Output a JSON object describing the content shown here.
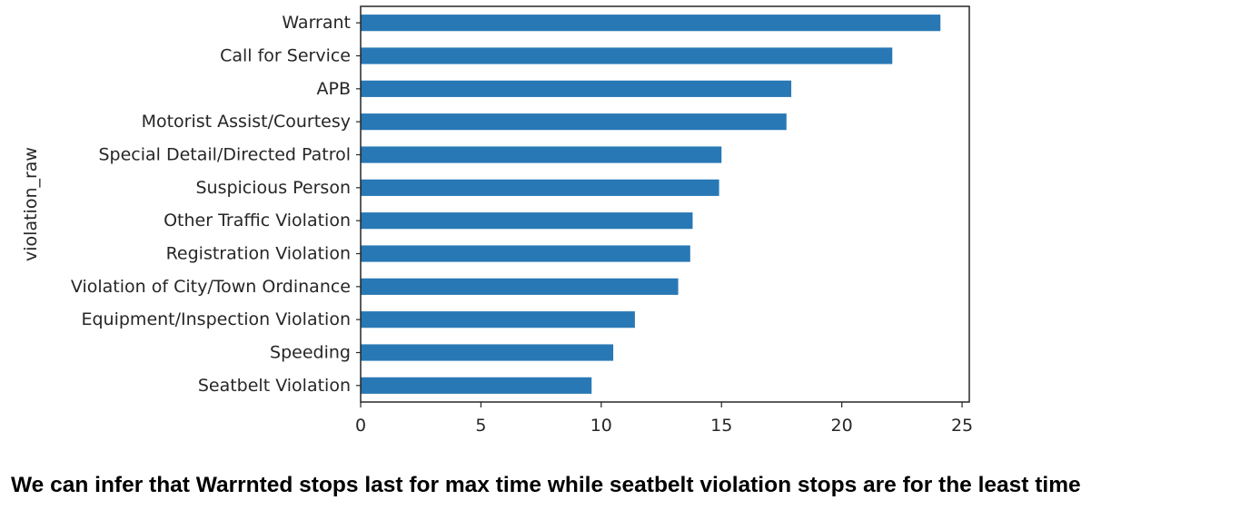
{
  "chart_data": {
    "type": "bar",
    "orientation": "horizontal",
    "categories": [
      "Warrant",
      "Call for Service",
      "APB",
      "Motorist Assist/Courtesy",
      "Special Detail/Directed Patrol",
      "Suspicious Person",
      "Other Traffic Violation",
      "Registration Violation",
      "Violation of City/Town Ordinance",
      "Equipment/Inspection Violation",
      "Speeding",
      "Seatbelt Violation"
    ],
    "values": [
      24.1,
      22.1,
      17.9,
      17.7,
      15.0,
      14.9,
      13.8,
      13.7,
      13.2,
      11.4,
      10.5,
      9.6
    ],
    "xlim": [
      0,
      25.3
    ],
    "xticks": [
      0,
      5,
      10,
      15,
      20,
      25
    ],
    "ylabel": "violation_raw",
    "xlabel": "",
    "bar_color": "#2878b5",
    "grid": false
  },
  "caption": "We can infer that Warrnted stops last for max time while seatbelt violation stops are for the least time"
}
